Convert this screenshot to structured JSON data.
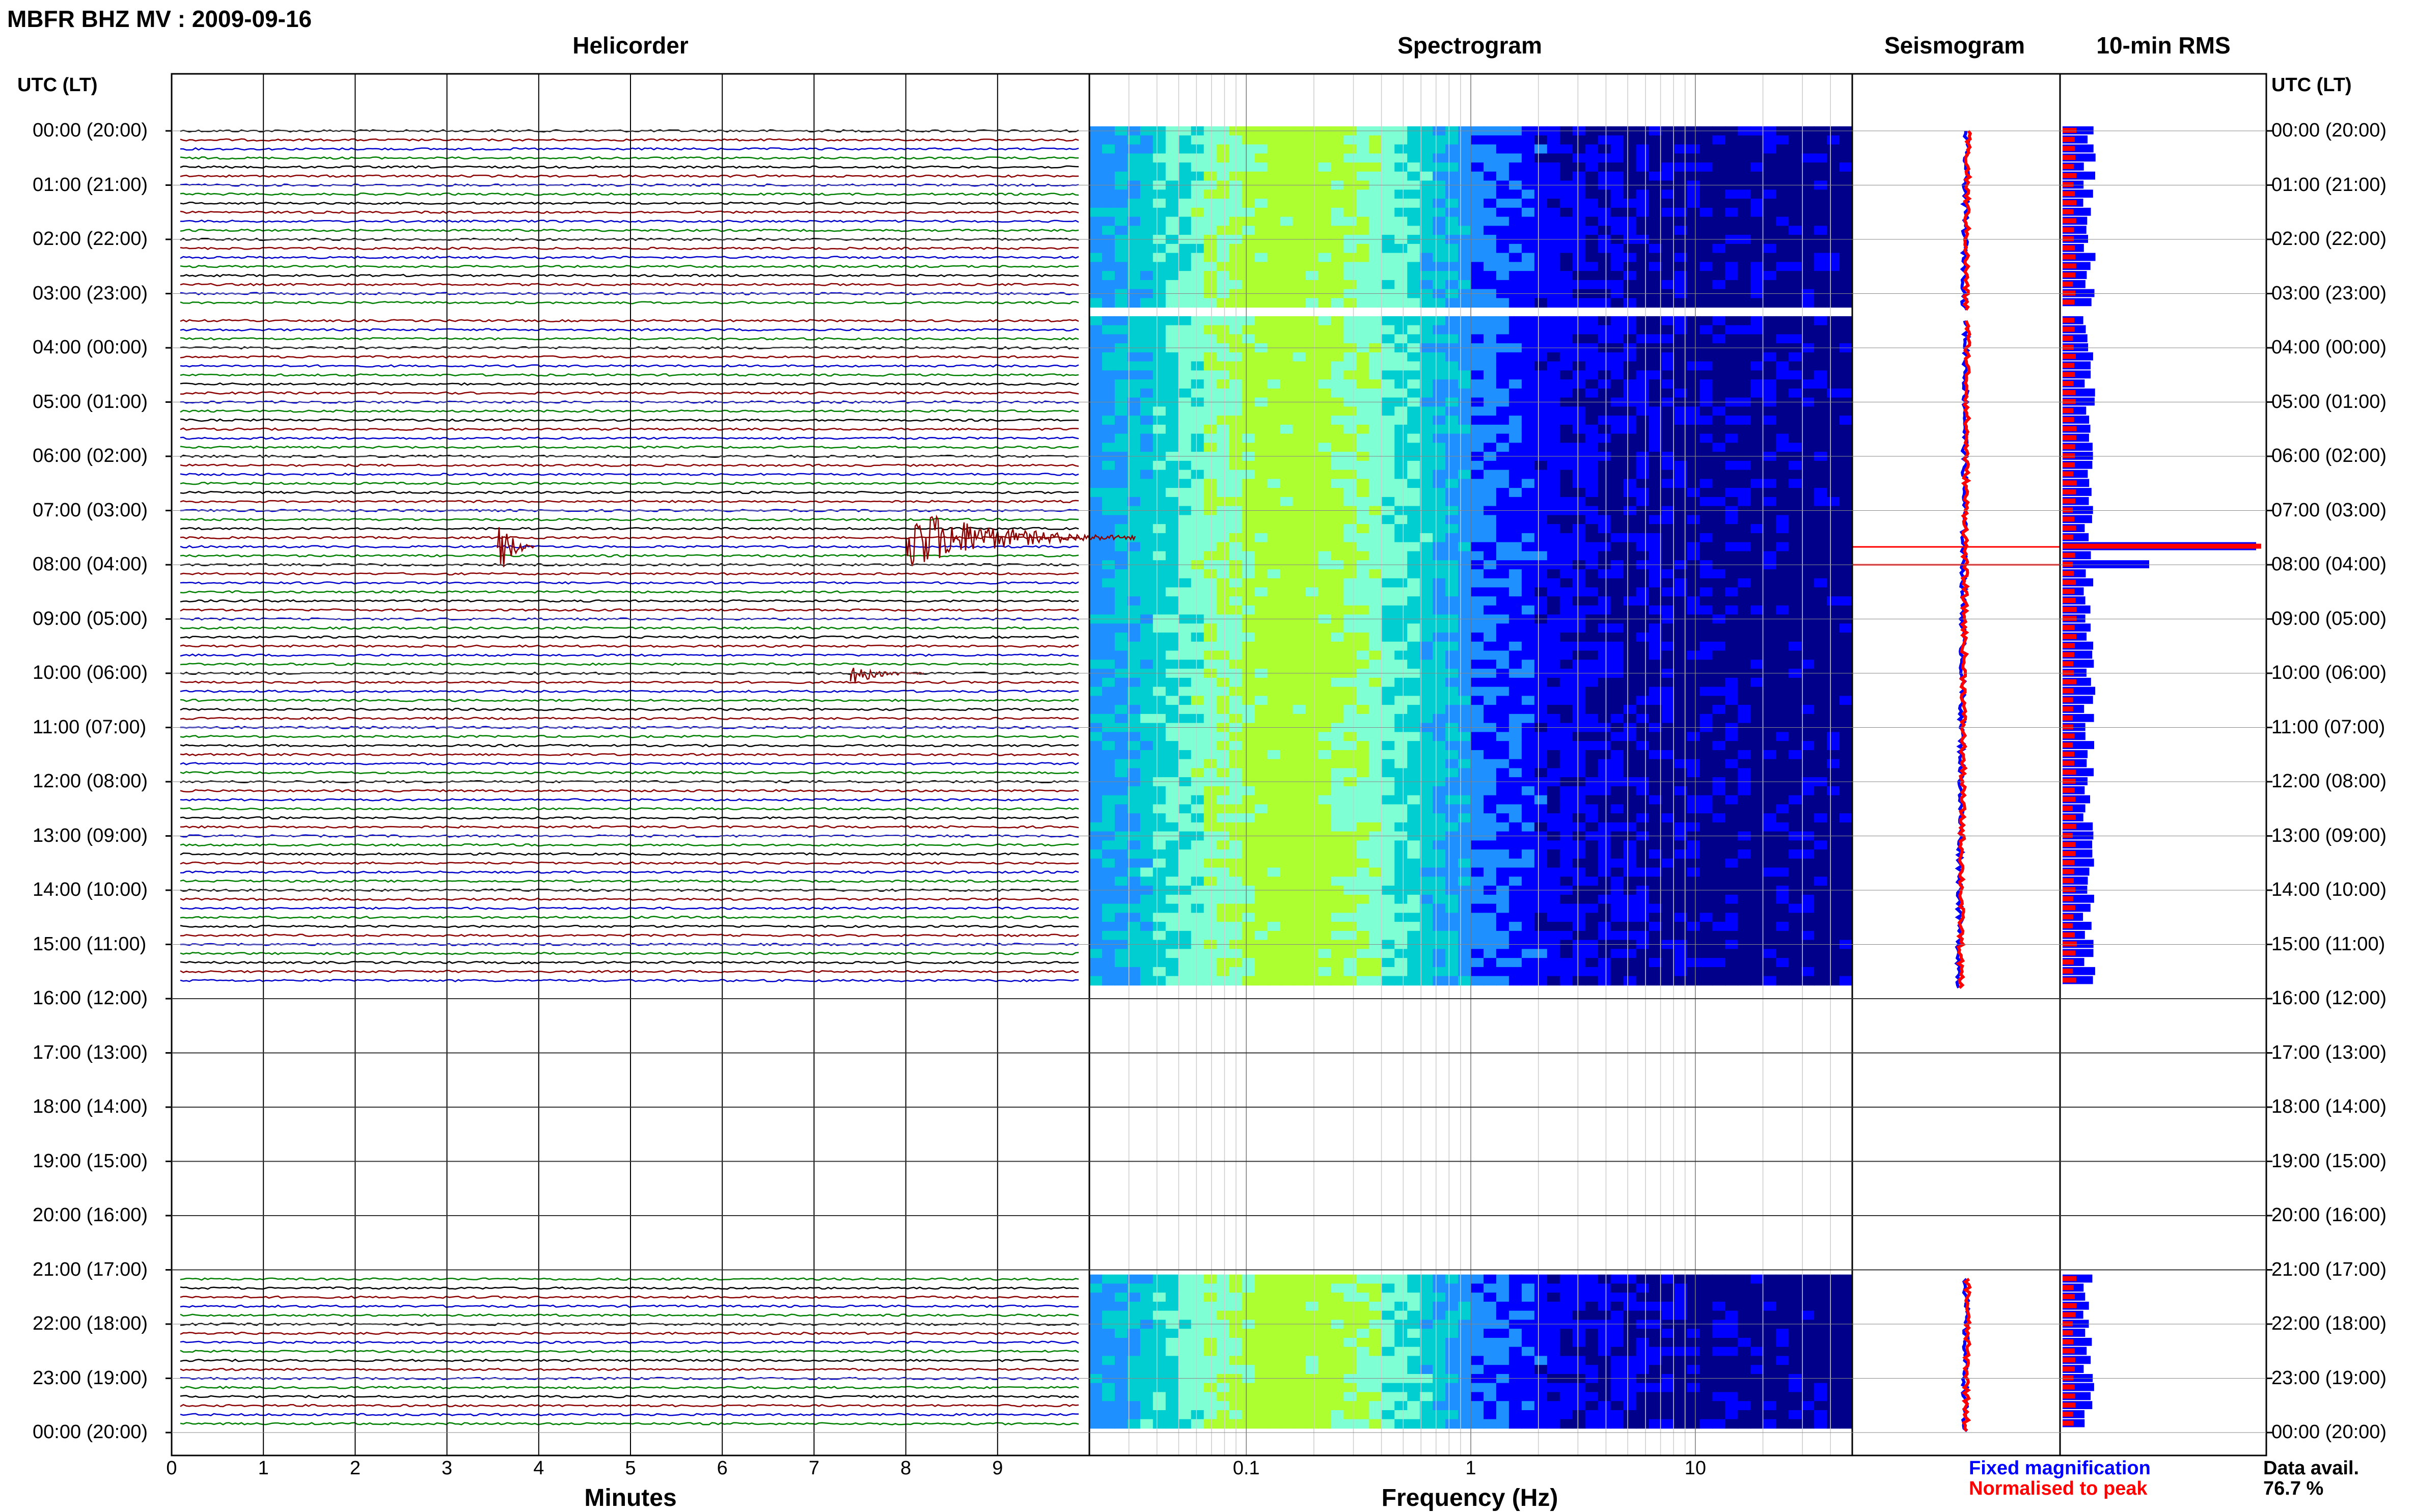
{
  "header": {
    "station_title": "MBFR BHZ MV : 2009-09-16"
  },
  "time_axis": {
    "label_left": "UTC (LT)",
    "label_right": "UTC (LT)",
    "labels": [
      "00:00 (20:00)",
      "01:00 (21:00)",
      "02:00 (22:00)",
      "03:00 (23:00)",
      "04:00 (00:00)",
      "05:00 (01:00)",
      "06:00 (02:00)",
      "07:00 (03:00)",
      "08:00 (04:00)",
      "09:00 (05:00)",
      "10:00 (06:00)",
      "11:00 (07:00)",
      "12:00 (08:00)",
      "13:00 (09:00)",
      "14:00 (10:00)",
      "15:00 (11:00)",
      "16:00 (12:00)",
      "17:00 (13:00)",
      "18:00 (14:00)",
      "19:00 (15:00)",
      "20:00 (16:00)",
      "21:00 (17:00)",
      "22:00 (18:00)",
      "23:00 (19:00)",
      "00:00 (20:00)"
    ]
  },
  "panels": {
    "helicorder": {
      "title": "Helicorder",
      "xlabel": "Minutes",
      "ticks": [
        "0",
        "1",
        "2",
        "3",
        "4",
        "5",
        "6",
        "7",
        "8",
        "9"
      ]
    },
    "spectrogram": {
      "title": "Spectrogram",
      "xlabel": "Frequency (Hz)",
      "ticks": [
        "0.1",
        "1",
        "10"
      ]
    },
    "seismogram": {
      "title": "Seismogram"
    },
    "rms": {
      "title": "10-min RMS"
    }
  },
  "legend": {
    "fixed": "Fixed magnification",
    "normalised": "Normalised to peak",
    "fixed_color": "#0000ff",
    "normalised_color": "#ff0000"
  },
  "data_availability": {
    "label": "Data avail.",
    "value": "76.7 %"
  },
  "chart_data": [
    {
      "type": "line",
      "name": "helicorder",
      "x_range_minutes": [
        0,
        10
      ],
      "trace_colors": [
        "#000000",
        "#8b0000",
        "#0000cd",
        "#008000"
      ],
      "traces_per_hour": 6,
      "data_hours": [
        [
          0,
          3.33
        ],
        [
          3.5,
          15.83
        ],
        [
          21.17,
          24
        ]
      ],
      "events": [
        {
          "hour": 7.5,
          "minute": 8.0,
          "amplitude": "large",
          "duration_min": 2.5
        },
        {
          "hour": 7.67,
          "minute": 3.55,
          "amplitude": "large",
          "duration_min": 0.4
        },
        {
          "hour": 10.0,
          "minute": 7.4,
          "amplitude": "medium",
          "duration_min": 0.8
        }
      ]
    },
    {
      "type": "heatmap",
      "name": "spectrogram",
      "x_scale": "log",
      "x_range_hz": [
        0.02,
        50
      ],
      "data_hours": [
        [
          0,
          3.33
        ],
        [
          3.5,
          15.83
        ],
        [
          21.17,
          24
        ]
      ],
      "colormap": [
        "#00008b",
        "#0000ff",
        "#1e90ff",
        "#00ced1",
        "#7fffd4",
        "#adff2f"
      ]
    },
    {
      "type": "line",
      "name": "seismogram",
      "series": [
        {
          "name": "Fixed magnification",
          "color": "#0000ff"
        },
        {
          "name": "Normalised to peak",
          "color": "#ff0000"
        }
      ],
      "spike_hours": [
        7.67,
        8.0
      ]
    },
    {
      "type": "bar",
      "name": "10-min RMS",
      "series": [
        {
          "name": "Fixed magnification",
          "color": "#0000ff"
        },
        {
          "name": "Normalised to peak",
          "color": "#ff0000"
        }
      ],
      "peak_hour": 7.67
    }
  ]
}
